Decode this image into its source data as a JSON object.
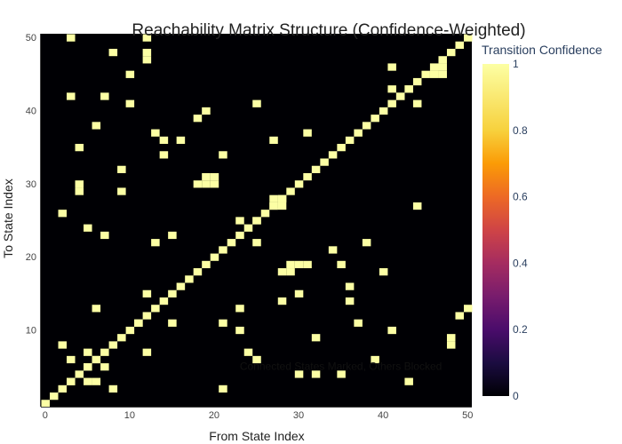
{
  "chart_data": {
    "type": "heatmap",
    "title": "Reachability Matrix Structure (Confidence-Weighted)",
    "xlabel": "From State Index",
    "ylabel": "To State Index",
    "xlim": [
      0,
      50
    ],
    "ylim": [
      0,
      50
    ],
    "x_ticks": [
      0,
      10,
      20,
      30,
      40,
      50
    ],
    "y_ticks": [
      10,
      20,
      30,
      40,
      50
    ],
    "colorbar": {
      "title": "Transition Confidence",
      "range": [
        0,
        1
      ],
      "ticks": [
        0,
        0.2,
        0.4,
        0.6,
        0.8,
        1
      ],
      "tick_labels": [
        "0",
        "0.2",
        "0.4",
        "0.6",
        "0.8",
        "1"
      ]
    },
    "background_value": 0,
    "cell_value": 1,
    "diagonal": {
      "from": 0,
      "to": 50,
      "value": 1
    },
    "extra_cells": [
      [
        3,
        50
      ],
      [
        12,
        50
      ],
      [
        8,
        48
      ],
      [
        12,
        48
      ],
      [
        12,
        47
      ],
      [
        10,
        45
      ],
      [
        41,
        46
      ],
      [
        46,
        46
      ],
      [
        47,
        46
      ],
      [
        46,
        45
      ],
      [
        47,
        45
      ],
      [
        43,
        43
      ],
      [
        41,
        43
      ],
      [
        42,
        42
      ],
      [
        44,
        41
      ],
      [
        3,
        42
      ],
      [
        7,
        42
      ],
      [
        10,
        41
      ],
      [
        25,
        41
      ],
      [
        19,
        40
      ],
      [
        18,
        39
      ],
      [
        6,
        38
      ],
      [
        13,
        37
      ],
      [
        31,
        37
      ],
      [
        14,
        36
      ],
      [
        16,
        36
      ],
      [
        27,
        36
      ],
      [
        4,
        35
      ],
      [
        14,
        34
      ],
      [
        21,
        34
      ],
      [
        9,
        32
      ],
      [
        19,
        31
      ],
      [
        20,
        31
      ],
      [
        18,
        30
      ],
      [
        19,
        30
      ],
      [
        20,
        30
      ],
      [
        4,
        30
      ],
      [
        4,
        29
      ],
      [
        9,
        29
      ],
      [
        27,
        28
      ],
      [
        28,
        28
      ],
      [
        27,
        27
      ],
      [
        28,
        27
      ],
      [
        44,
        27
      ],
      [
        2,
        26
      ],
      [
        23,
        25
      ],
      [
        25,
        25
      ],
      [
        5,
        24
      ],
      [
        7,
        23
      ],
      [
        15,
        23
      ],
      [
        13,
        22
      ],
      [
        25,
        22
      ],
      [
        38,
        22
      ],
      [
        34,
        21
      ],
      [
        29,
        19
      ],
      [
        30,
        19
      ],
      [
        31,
        19
      ],
      [
        35,
        19
      ],
      [
        28,
        18
      ],
      [
        29,
        18
      ],
      [
        40,
        18
      ],
      [
        36,
        16
      ],
      [
        12,
        15
      ],
      [
        30,
        15
      ],
      [
        36,
        14
      ],
      [
        28,
        14
      ],
      [
        6,
        13
      ],
      [
        23,
        13
      ],
      [
        50,
        13
      ],
      [
        49,
        12
      ],
      [
        11,
        11
      ],
      [
        15,
        11
      ],
      [
        21,
        11
      ],
      [
        37,
        11
      ],
      [
        23,
        10
      ],
      [
        41,
        10
      ],
      [
        32,
        9
      ],
      [
        48,
        9
      ],
      [
        48,
        8
      ],
      [
        2,
        8
      ],
      [
        12,
        7
      ],
      [
        24,
        7
      ],
      [
        5,
        7
      ],
      [
        3,
        6
      ],
      [
        6,
        6
      ],
      [
        39,
        6
      ],
      [
        25,
        6
      ],
      [
        5,
        5
      ],
      [
        7,
        5
      ],
      [
        3,
        3
      ],
      [
        5,
        3
      ],
      [
        6,
        3
      ],
      [
        8,
        2
      ],
      [
        21,
        2
      ],
      [
        43,
        3
      ],
      [
        30,
        4
      ],
      [
        32,
        4
      ],
      [
        35,
        4
      ]
    ],
    "annotation": {
      "text": "Connected States Marked, Others Blocked",
      "x": 35,
      "y": 5
    }
  }
}
